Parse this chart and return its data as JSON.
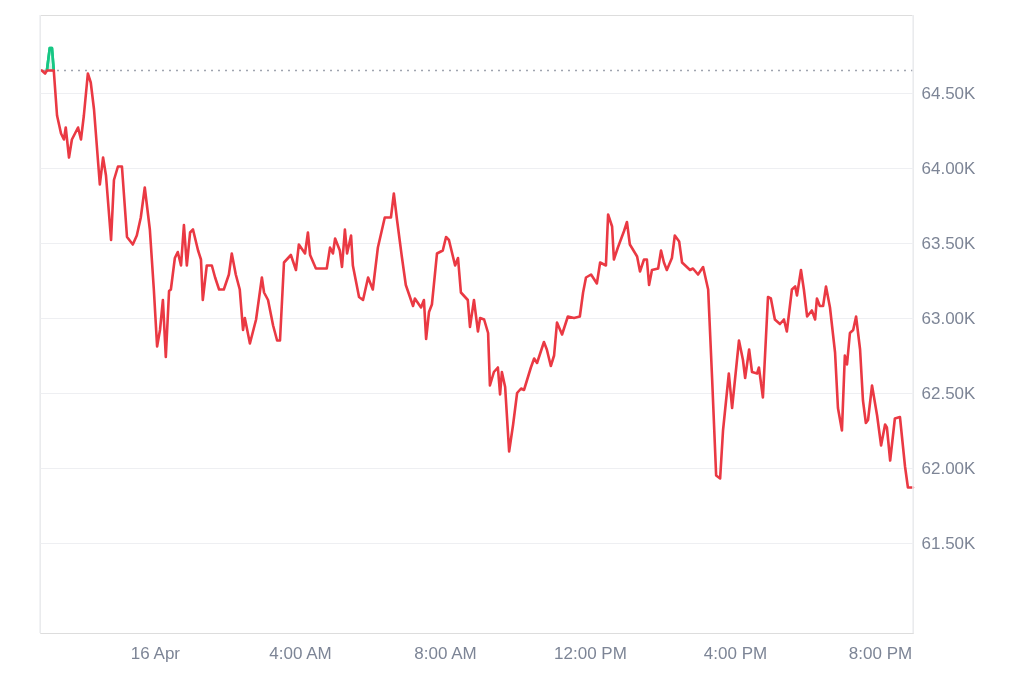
{
  "chart_data": {
    "type": "line",
    "xlim": [
      -3.17,
      20.91
    ],
    "xticks": [
      {
        "value": 0,
        "label": "16 Apr"
      },
      {
        "value": 4,
        "label": "4:00 AM"
      },
      {
        "value": 8,
        "label": "8:00 AM"
      },
      {
        "value": 12,
        "label": "12:00 PM"
      },
      {
        "value": 16,
        "label": "4:00 PM"
      },
      {
        "value": 20,
        "label": "8:00 PM"
      }
    ],
    "ylim": [
      60900,
      65020
    ],
    "yticks": [
      {
        "value": 61500,
        "label": "61.50K"
      },
      {
        "value": 62000,
        "label": "62.00K"
      },
      {
        "value": 62500,
        "label": "62.50K"
      },
      {
        "value": 63000,
        "label": "63.00K"
      },
      {
        "value": 63500,
        "label": "63.50K"
      },
      {
        "value": 64000,
        "label": "64.00K"
      },
      {
        "value": 64500,
        "label": "64.50K"
      }
    ],
    "grid": "y",
    "ref_lines": [
      {
        "axis": "y",
        "value": 64650,
        "label": null,
        "color": "#a0a5b0",
        "line_style": "dotted"
      }
    ],
    "series": [
      {
        "type": "area",
        "color": "#16c784",
        "x": [
          -2.98,
          -2.9,
          -2.84,
          -2.79
        ],
        "values": [
          64650,
          64800,
          64800,
          64650
        ]
      },
      {
        "color": "#ea3943",
        "x": [
          -3.12,
          -3.03,
          -2.98,
          -2.79,
          -2.7,
          -2.59,
          -2.51,
          -2.46,
          -2.37,
          -2.29,
          -2.12,
          -2.04,
          -1.96,
          -1.85,
          -1.77,
          -1.68,
          -1.52,
          -1.43,
          -1.35,
          -1.21,
          -1.13,
          -1.02,
          -0.91,
          -0.77,
          -0.61,
          -0.5,
          -0.39,
          -0.28,
          -0.14,
          -0.03,
          0.06,
          0.14,
          0.22,
          0.3,
          0.39,
          0.44,
          0.55,
          0.63,
          0.72,
          0.8,
          0.88,
          0.97,
          1.05,
          1.19,
          1.27,
          1.32,
          1.43,
          1.57,
          1.66,
          1.77,
          1.9,
          2.04,
          2.12,
          2.23,
          2.34,
          2.43,
          2.48,
          2.62,
          2.79,
          2.95,
          3.01,
          3.12,
          3.26,
          3.37,
          3.45,
          3.56,
          3.75,
          3.89,
          3.97,
          4.14,
          4.22,
          4.28,
          4.44,
          4.74,
          4.83,
          4.91,
          4.97,
          5.1,
          5.16,
          5.24,
          5.3,
          5.41,
          5.46,
          5.63,
          5.74,
          5.88,
          6.01,
          6.15,
          6.34,
          6.51,
          6.59,
          6.68,
          6.81,
          6.92,
          7.12,
          7.17,
          7.34,
          7.42,
          7.48,
          7.56,
          7.64,
          7.78,
          7.94,
          8.03,
          8.11,
          8.28,
          8.36,
          8.44,
          8.63,
          8.69,
          8.8,
          8.91,
          8.97,
          9.08,
          9.19,
          9.24,
          9.35,
          9.46,
          9.52,
          9.57,
          9.66,
          9.77,
          9.88,
          9.99,
          10.1,
          10.18,
          10.37,
          10.46,
          10.54,
          10.73,
          10.81,
          10.92,
          11.01,
          11.09,
          11.23,
          11.39,
          11.56,
          11.72,
          11.81,
          11.89,
          12.03,
          12.19,
          12.28,
          12.44,
          12.5,
          12.61,
          12.66,
          12.77,
          12.94,
          13.02,
          13.1,
          13.3,
          13.38,
          13.49,
          13.57,
          13.63,
          13.71,
          13.88,
          13.96,
          14.04,
          14.12,
          14.26,
          14.34,
          14.46,
          14.54,
          14.76,
          14.84,
          14.98,
          15.12,
          15.26,
          15.37,
          15.48,
          15.59,
          15.67,
          15.83,
          15.92,
          16.11,
          16.22,
          16.28,
          16.39,
          16.47,
          16.61,
          16.66,
          16.77,
          16.91,
          16.99,
          17.1,
          17.24,
          17.35,
          17.43,
          17.57,
          17.66,
          17.71,
          17.82,
          17.9,
          17.99,
          18.12,
          18.21,
          18.26,
          18.34,
          18.43,
          18.51,
          18.62,
          18.76,
          18.84,
          18.95,
          19.03,
          19.09,
          19.17,
          19.26,
          19.34,
          19.45,
          19.53,
          19.61,
          19.67,
          19.78,
          19.92,
          20.03,
          20.14,
          20.19,
          20.28,
          20.41,
          20.55,
          20.69,
          20.77,
          20.91
        ],
        "values": [
          64650,
          64630,
          64650,
          64650,
          64350,
          64230,
          64190,
          64270,
          64070,
          64190,
          64270,
          64190,
          64350,
          64630,
          64570,
          64390,
          63890,
          64070,
          63950,
          63520,
          63920,
          64010,
          64010,
          63540,
          63490,
          63550,
          63670,
          63870,
          63590,
          63190,
          62810,
          62920,
          63120,
          62740,
          63180,
          63190,
          63400,
          63440,
          63350,
          63620,
          63350,
          63570,
          63590,
          63450,
          63390,
          63120,
          63350,
          63350,
          63270,
          63190,
          63190,
          63290,
          63430,
          63290,
          63190,
          62920,
          63000,
          62830,
          62990,
          63270,
          63170,
          63120,
          62950,
          62850,
          62850,
          63370,
          63420,
          63320,
          63490,
          63430,
          63570,
          63420,
          63330,
          63330,
          63470,
          63430,
          63530,
          63450,
          63340,
          63590,
          63430,
          63550,
          63350,
          63140,
          63120,
          63270,
          63190,
          63470,
          63670,
          63670,
          63830,
          63650,
          63410,
          63220,
          63080,
          63130,
          63070,
          63120,
          62860,
          63040,
          63090,
          63430,
          63450,
          63540,
          63520,
          63350,
          63400,
          63170,
          63120,
          62940,
          63120,
          62910,
          63000,
          62990,
          62900,
          62550,
          62640,
          62670,
          62490,
          62640,
          62540,
          62110,
          62290,
          62500,
          62530,
          62520,
          62670,
          62730,
          62700,
          62840,
          62790,
          62680,
          62750,
          62970,
          62890,
          63010,
          63000,
          63010,
          63170,
          63270,
          63290,
          63230,
          63370,
          63350,
          63690,
          63610,
          63390,
          63470,
          63580,
          63640,
          63490,
          63410,
          63310,
          63390,
          63390,
          63220,
          63320,
          63330,
          63450,
          63370,
          63320,
          63400,
          63550,
          63510,
          63370,
          63320,
          63330,
          63290,
          63340,
          63190,
          62590,
          61950,
          61930,
          62250,
          62630,
          62400,
          62850,
          62720,
          62600,
          62790,
          62640,
          62630,
          62670,
          62470,
          63140,
          63130,
          62990,
          62960,
          62990,
          62910,
          63190,
          63210,
          63150,
          63320,
          63190,
          63010,
          63050,
          62990,
          63130,
          63080,
          63080,
          63210,
          63070,
          62770,
          62400,
          62250,
          62750,
          62690,
          62900,
          62920,
          63010,
          62790,
          62450,
          62300,
          62320,
          62550,
          62350,
          62150,
          62290,
          62270,
          62050,
          62330,
          62340,
          62010,
          61870,
          61870
        ]
      }
    ]
  }
}
